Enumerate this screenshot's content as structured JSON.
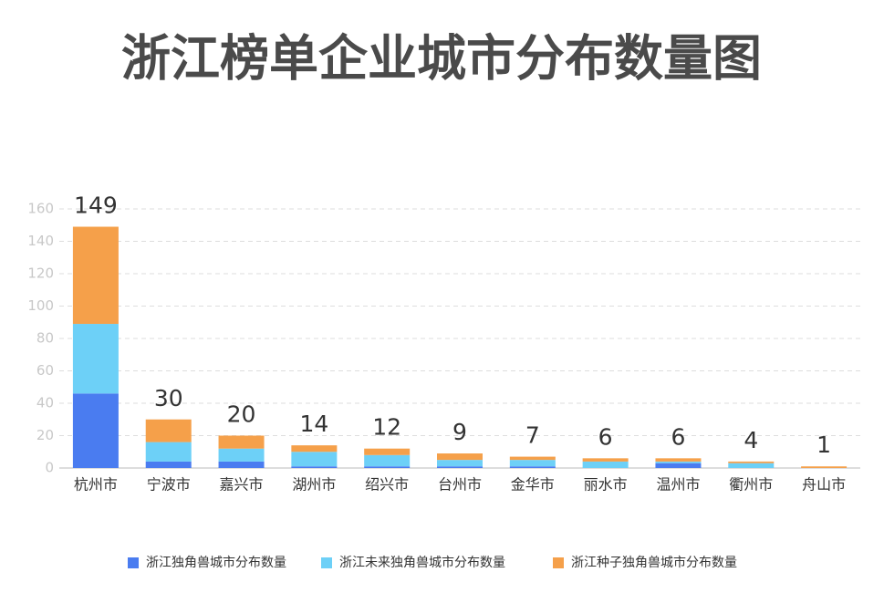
{
  "chart_data": {
    "type": "stacked_bar",
    "title": "浙江榜单企业城市分布数量图",
    "categories": [
      "杭州市",
      "宁波市",
      "嘉兴市",
      "湖州市",
      "绍兴市",
      "台州市",
      "金华市",
      "丽水市",
      "温州市",
      "衢州市",
      "舟山市"
    ],
    "series": [
      {
        "name": "浙江独角兽城市分布数量",
        "color": "#4a7cf0",
        "values": [
          46,
          4,
          4,
          1,
          1,
          1,
          1,
          0,
          3,
          0,
          0
        ]
      },
      {
        "name": "浙江未来独角兽城市分布数量",
        "color": "#6dd0f7",
        "values": [
          43,
          12,
          8,
          9,
          7,
          4,
          4,
          4,
          1,
          3,
          0
        ]
      },
      {
        "name": "浙江种子独角兽城市分布数量",
        "color": "#f5a04a",
        "values": [
          60,
          14,
          8,
          4,
          4,
          4,
          2,
          2,
          2,
          1,
          1
        ]
      }
    ],
    "totals": [
      149,
      30,
      20,
      14,
      12,
      9,
      7,
      6,
      6,
      4,
      1
    ],
    "ylim": [
      0,
      160
    ],
    "yticks": [
      0,
      20,
      40,
      60,
      80,
      100,
      120,
      140,
      160
    ],
    "grid": true,
    "legend": "bottom"
  }
}
